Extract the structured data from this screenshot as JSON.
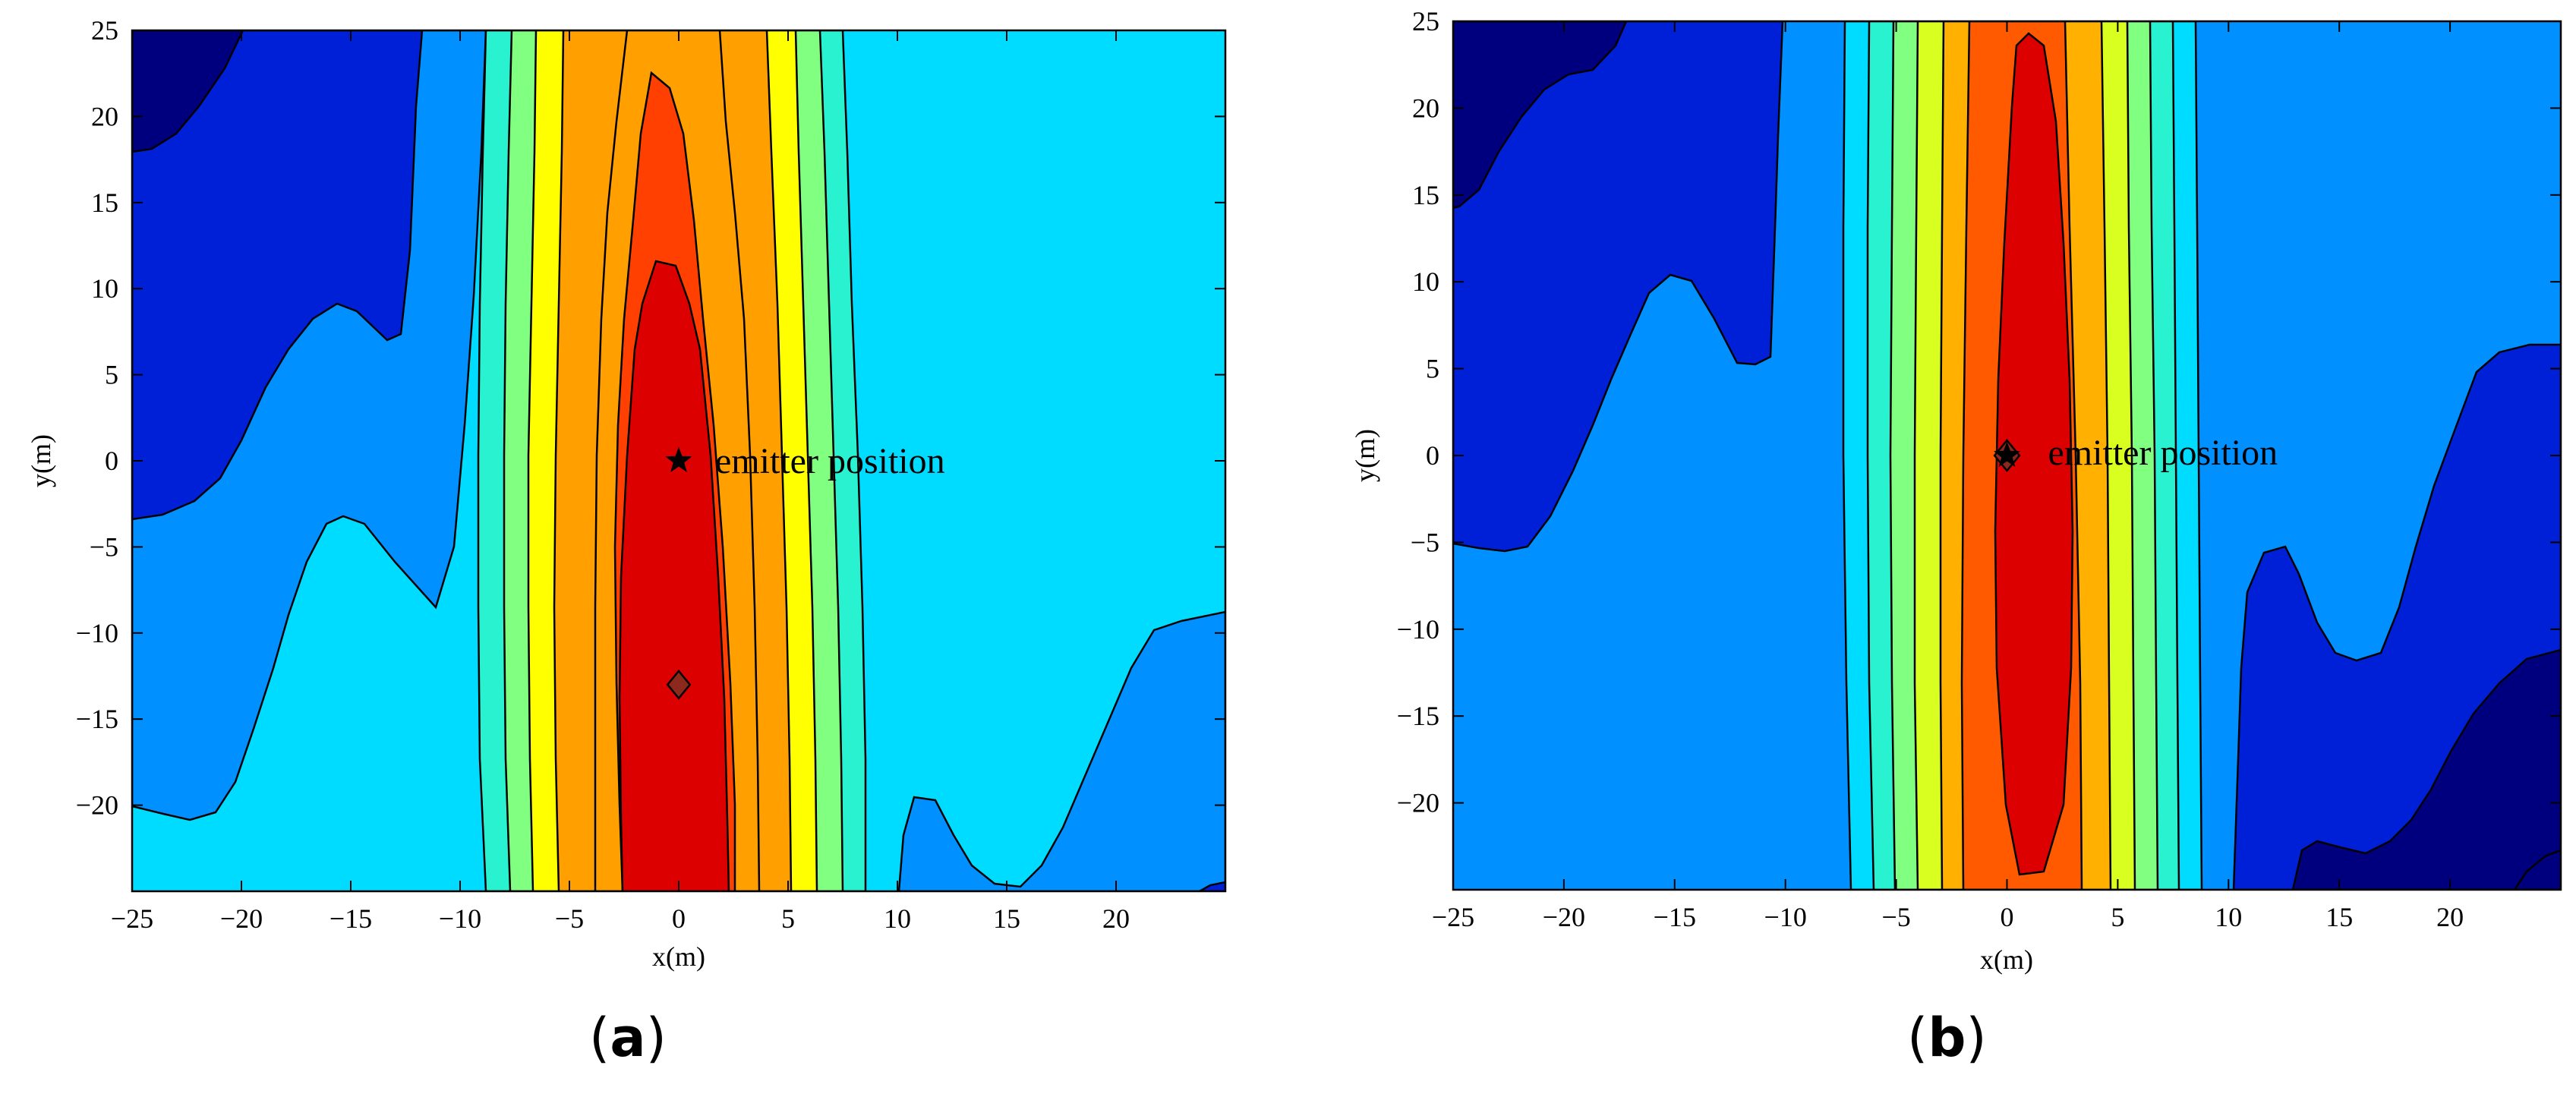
{
  "chart_data": [
    {
      "type": "contour",
      "panel_label": "(a)",
      "xlabel": "x(m)",
      "ylabel": "y(m)",
      "xlim": [
        -25,
        25
      ],
      "ylim": [
        -25,
        25
      ],
      "xticks": [
        -25,
        -20,
        -15,
        -10,
        -5,
        0,
        5,
        10,
        15,
        20
      ],
      "yticks": [
        25,
        20,
        15,
        10,
        5,
        0,
        -5,
        -10,
        -15,
        -20
      ],
      "annotation": {
        "text": "emitter position",
        "x": 0,
        "y": 0
      },
      "emitter_marker": {
        "symbol": "star",
        "x": 0,
        "y": 0
      },
      "estimate_marker": {
        "symbol": "diamond",
        "x": 0,
        "y": -13
      },
      "colors": {
        "level1": "#00007f",
        "level2": "#0020d8",
        "level3": "#0090ff",
        "level4": "#00dcff",
        "level5": "#29f2d0",
        "level6": "#80ff80",
        "level7": "#ffff00",
        "level8": "#ffa000",
        "level9": "#ff4000",
        "level10": "#dc0000",
        "estimate_marker": "#8b2a1c"
      }
    },
    {
      "type": "contour",
      "panel_label": "(b)",
      "xlabel": "x(m)",
      "ylabel": "y(m)",
      "xlim": [
        -25,
        25
      ],
      "ylim": [
        -25,
        25
      ],
      "xticks": [
        -25,
        -20,
        -15,
        -10,
        -5,
        0,
        5,
        10,
        15,
        20
      ],
      "yticks": [
        25,
        20,
        15,
        10,
        5,
        0,
        -5,
        -10,
        -15,
        -20
      ],
      "annotation": {
        "text": "emitter position",
        "x": 0,
        "y": 0
      },
      "emitter_marker": {
        "symbol": "star",
        "x": 0,
        "y": 0
      },
      "estimate_marker": {
        "symbol": "diamond",
        "x": 0,
        "y": 0
      },
      "colors": {
        "level1": "#00007f",
        "level2": "#0020d8",
        "level3": "#0090ff",
        "level4": "#00dcff",
        "level5": "#29f2d0",
        "level6": "#80ff80",
        "level7": "#ffff00",
        "level8": "#ffa000",
        "level9": "#ff4000",
        "level10": "#dc0000",
        "estimate_marker": "#8b2a1c"
      }
    }
  ]
}
